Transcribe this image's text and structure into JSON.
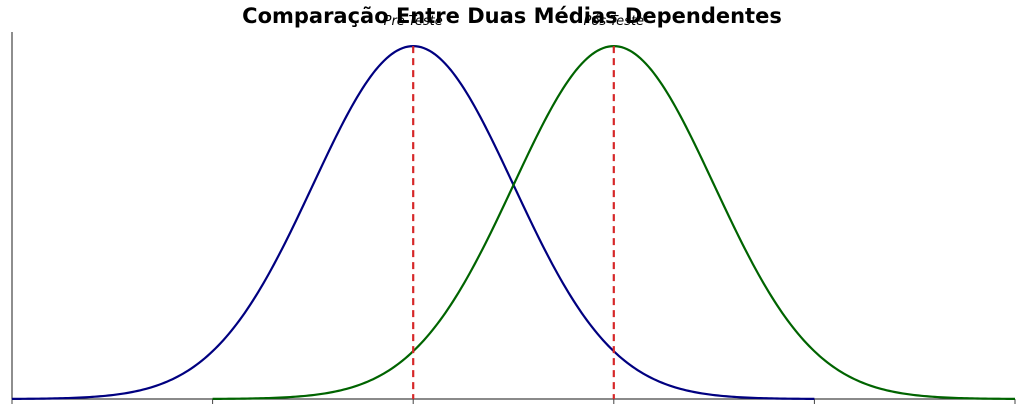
{
  "chart_data": {
    "type": "line",
    "title": "Comparação Entre Duas Médias Dependentes",
    "xlabel": "",
    "ylabel": "",
    "xlim": [
      -4,
      6
    ],
    "ylim": [
      0,
      1.04
    ],
    "grid": false,
    "series": [
      {
        "name": "",
        "kind": "normal-density",
        "mean": 0,
        "sd": 1,
        "color": "#000080"
      },
      {
        "name": "",
        "kind": "normal-density",
        "mean": 2,
        "sd": 1,
        "color": "#006400"
      }
    ],
    "annotations": [
      {
        "text": "Pré-Teste",
        "x": 0
      },
      {
        "text": "Pós-Teste",
        "x": 2
      }
    ],
    "reference_lines": [
      {
        "x": 0,
        "style": "dashed",
        "color": "#d62728"
      },
      {
        "x": 2,
        "style": "dashed",
        "color": "#d62728"
      }
    ],
    "xticks": [
      -4,
      -2,
      0,
      2,
      4,
      6
    ]
  }
}
